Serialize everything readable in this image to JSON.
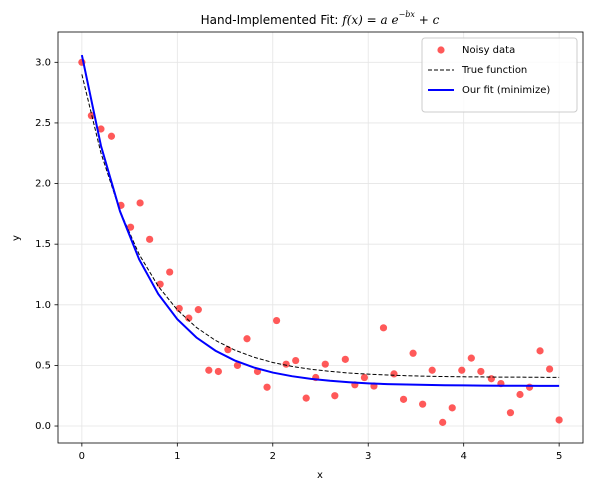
{
  "chart_data": {
    "type": "scatter",
    "title": [
      "Hand-Implemented Fit: ",
      "f(x) = a e",
      "−bx",
      " + c"
    ],
    "xlabel": "x",
    "ylabel": "y",
    "xlim": [
      -0.25,
      5.25
    ],
    "ylim": [
      -0.14,
      3.25
    ],
    "xticks": [
      0,
      1,
      2,
      3,
      4,
      5
    ],
    "yticks": [
      {
        "value": 0,
        "label": "0.0"
      },
      0.5,
      {
        "value": 1,
        "label": "1.0"
      },
      1.5,
      {
        "value": 2,
        "label": "2.0"
      },
      2.5,
      {
        "value": 3,
        "label": "3.0"
      }
    ],
    "grid": true,
    "legend": "upper right",
    "series": [
      {
        "name": "Noisy data",
        "type": "scatter",
        "color": "#ff0000",
        "alpha": 0.65,
        "x": [
          0,
          0.1,
          0.2,
          0.31,
          0.41,
          0.51,
          0.61,
          0.71,
          0.82,
          0.92,
          1.02,
          1.12,
          1.22,
          1.33,
          1.43,
          1.53,
          1.63,
          1.73,
          1.84,
          1.94,
          2.04,
          2.14,
          2.24,
          2.35,
          2.45,
          2.55,
          2.65,
          2.76,
          2.86,
          2.96,
          3.06,
          3.16,
          3.27,
          3.37,
          3.47,
          3.57,
          3.67,
          3.78,
          3.88,
          3.98,
          4.08,
          4.18,
          4.29,
          4.39,
          4.49,
          4.59,
          4.69,
          4.8,
          4.9,
          5.0
        ],
        "values": [
          3.0,
          2.56,
          2.45,
          2.39,
          1.82,
          1.64,
          1.84,
          1.54,
          1.17,
          1.27,
          0.97,
          0.89,
          0.96,
          0.46,
          0.45,
          0.63,
          0.5,
          0.72,
          0.45,
          0.32,
          0.87,
          0.51,
          0.54,
          0.23,
          0.4,
          0.51,
          0.25,
          0.55,
          0.34,
          0.4,
          0.33,
          0.81,
          0.43,
          0.22,
          0.6,
          0.18,
          0.46,
          0.03,
          0.15,
          0.46,
          0.56,
          0.45,
          0.39,
          0.35,
          0.11,
          0.26,
          0.32,
          0.62,
          0.47,
          0.05
        ]
      },
      {
        "name": "True function",
        "type": "line",
        "linestyle": "dashed",
        "color": "#000000",
        "width": 1,
        "x": [
          0,
          0.2,
          0.4,
          0.6,
          0.8,
          1.0,
          1.2,
          1.4,
          1.6,
          1.8,
          2.0,
          2.2,
          2.4,
          2.6,
          2.8,
          3.0,
          3.2,
          3.4,
          3.6,
          3.8,
          4.0,
          4.2,
          4.4,
          4.6,
          4.8,
          5.0
        ],
        "values": [
          2.9,
          2.252,
          1.772,
          1.416,
          1.153,
          0.958,
          0.813,
          0.706,
          0.627,
          0.568,
          0.524,
          0.492,
          0.468,
          0.451,
          0.437,
          0.428,
          0.421,
          0.415,
          0.411,
          0.408,
          0.406,
          0.405,
          0.403,
          0.403,
          0.402,
          0.401
        ]
      },
      {
        "name": "Our fit (minimize)",
        "type": "line",
        "linestyle": "solid",
        "color": "#0000ff",
        "width": 2,
        "x": [
          0,
          0.2,
          0.4,
          0.6,
          0.8,
          1.0,
          1.2,
          1.4,
          1.6,
          1.8,
          2.0,
          2.2,
          2.4,
          2.6,
          2.8,
          3.0,
          3.2,
          3.4,
          3.6,
          3.8,
          4.0,
          4.2,
          4.4,
          4.6,
          4.8,
          5.0
        ],
        "values": [
          3.06,
          2.312,
          1.77,
          1.375,
          1.089,
          0.881,
          0.73,
          0.621,
          0.541,
          0.483,
          0.441,
          0.411,
          0.389,
          0.373,
          0.361,
          0.352,
          0.346,
          0.342,
          0.339,
          0.336,
          0.335,
          0.333,
          0.332,
          0.332,
          0.331,
          0.331
        ]
      }
    ]
  }
}
